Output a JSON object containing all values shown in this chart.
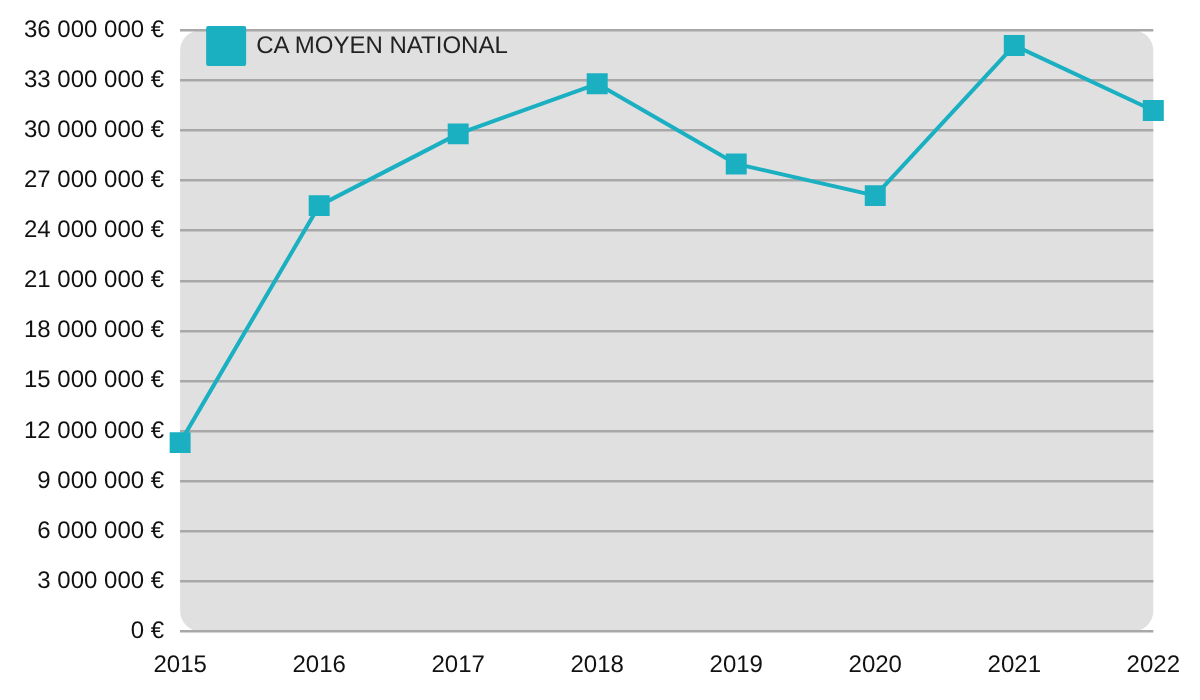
{
  "chart_data": {
    "type": "line",
    "categories": [
      "2015",
      "2016",
      "2017",
      "2018",
      "2019",
      "2020",
      "2021",
      "2022"
    ],
    "series": [
      {
        "name": "CA MOYEN NATIONAL",
        "color": "#1ab0c2",
        "values": [
          11300000,
          25500000,
          29800000,
          32800000,
          28000000,
          26100000,
          35100000,
          31200000
        ]
      }
    ],
    "ylim": [
      0,
      36000000
    ],
    "yticks": [
      {
        "value": 0,
        "label": "0 €"
      },
      {
        "value": 3000000,
        "label": "3 000 000 €"
      },
      {
        "value": 6000000,
        "label": "6 000 000 €"
      },
      {
        "value": 9000000,
        "label": "9 000 000 €"
      },
      {
        "value": 12000000,
        "label": "12 000 000 €"
      },
      {
        "value": 15000000,
        "label": "15 000 000 €"
      },
      {
        "value": 18000000,
        "label": "18 000 000 €"
      },
      {
        "value": 21000000,
        "label": "21 000 000 €"
      },
      {
        "value": 24000000,
        "label": "24 000 000 €"
      },
      {
        "value": 27000000,
        "label": "27 000 000 €"
      },
      {
        "value": 30000000,
        "label": "30 000 000 €"
      },
      {
        "value": 33000000,
        "label": "33 000 000 €"
      },
      {
        "value": 36000000,
        "label": "36 000 000 €"
      }
    ],
    "grid": "y",
    "legend": "top left",
    "marker": "square",
    "line_style": "solid"
  }
}
